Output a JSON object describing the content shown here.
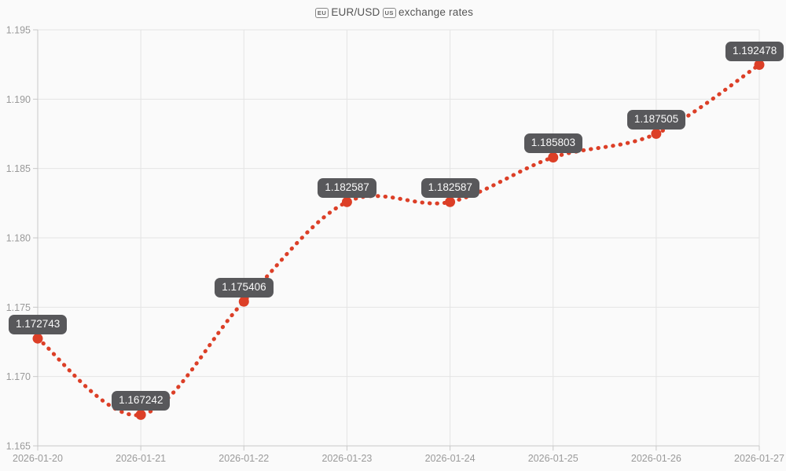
{
  "title": {
    "flag_eu": "EU",
    "text_pair": "EUR/USD",
    "flag_us": "US",
    "text_rest": "exchange rates"
  },
  "chart_data": {
    "type": "line",
    "title": "EUR/USD exchange rates",
    "xlabel": "",
    "ylabel": "",
    "x": [
      "2026-01-20",
      "2026-01-21",
      "2026-01-22",
      "2026-01-23",
      "2026-01-24",
      "2026-01-25",
      "2026-01-26",
      "2026-01-27"
    ],
    "series": [
      {
        "name": "EUR/USD",
        "values": [
          1.172743,
          1.167242,
          1.175406,
          1.182587,
          1.182587,
          1.185803,
          1.187505,
          1.192478
        ]
      }
    ],
    "point_labels": [
      "1.172743",
      "1.167242",
      "1.175406",
      "1.182587",
      "1.182587",
      "1.185803",
      "1.187505",
      "1.192478"
    ],
    "ylim": [
      1.165,
      1.195
    ],
    "yticks": [
      "1.165",
      "1.170",
      "1.175",
      "1.180",
      "1.185",
      "1.190",
      "1.195"
    ],
    "grid": true,
    "legend_position": "none",
    "line_style": "dotted-spline",
    "colors": {
      "line": "#dc3f27",
      "marker": "#dc3f27",
      "label_bg": "#58585b",
      "label_text": "#fafafa",
      "grid": "#e4e4e4",
      "axis": "#c8c8c8",
      "tick_text": "#9a9a9a",
      "title_text": "#555555",
      "background": "#fafafa"
    }
  }
}
